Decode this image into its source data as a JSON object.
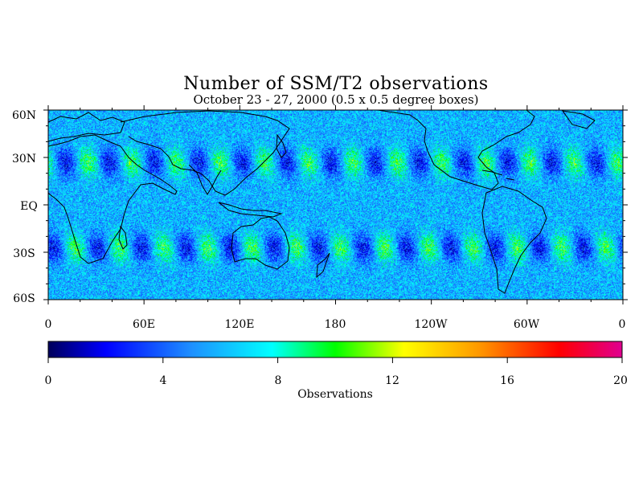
{
  "title": "Number of SSM/T2 observations",
  "subtitle": "October 23 - 27, 2000 (0.5 x 0.5 degree boxes)",
  "map": {
    "lat_labels": [
      "60N",
      "30N",
      "EQ",
      "30S",
      "60S"
    ],
    "lat_values": [
      60,
      30,
      0,
      -30,
      -60
    ],
    "lon_labels": [
      "0",
      "60E",
      "120E",
      "180",
      "120W",
      "60W",
      "0"
    ],
    "lon_values": [
      0,
      60,
      120,
      180,
      240,
      300,
      360
    ],
    "lat_range": [
      -60,
      60
    ],
    "lon_range": [
      0,
      360
    ],
    "grid_resolution_deg": 0.5,
    "background_level": 6,
    "swath_peak_level": 10,
    "gap_level": 2
  },
  "colorbar": {
    "tick_labels": [
      "0",
      "4",
      "8",
      "12",
      "16",
      "20"
    ],
    "tick_values": [
      0,
      4,
      8,
      12,
      16,
      20
    ],
    "range": [
      0,
      20
    ],
    "label": "Observations",
    "colors": [
      "#00005a",
      "#0000ff",
      "#1e90ff",
      "#00ffff",
      "#00ff00",
      "#ffff00",
      "#ff9900",
      "#ff0000",
      "#e00090"
    ]
  }
}
